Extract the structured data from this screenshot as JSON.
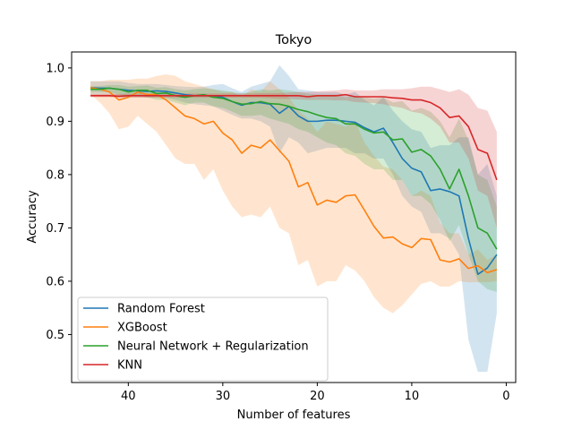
{
  "chart_data": {
    "type": "line",
    "title": "Tokyo",
    "xlabel": "Number of features",
    "ylabel": "Accuracy",
    "xlim": [
      46,
      -1
    ],
    "ylim": [
      0.41,
      1.03
    ],
    "xticks": [
      40,
      30,
      20,
      10,
      0
    ],
    "yticks": [
      0.5,
      0.6,
      0.7,
      0.8,
      0.9,
      1.0
    ],
    "xtick_labels": [
      "40",
      "30",
      "20",
      "10",
      "0"
    ],
    "ytick_labels": [
      "0.5",
      "0.6",
      "0.7",
      "0.8",
      "0.9",
      "1.0"
    ],
    "grid": false,
    "legend_position": "lower-left",
    "x": [
      44,
      43,
      42,
      41,
      40,
      39,
      38,
      37,
      36,
      35,
      34,
      33,
      32,
      31,
      30,
      29,
      28,
      27,
      26,
      25,
      24,
      23,
      22,
      21,
      20,
      19,
      18,
      17,
      16,
      15,
      14,
      13,
      12,
      11,
      10,
      9,
      8,
      7,
      6,
      5,
      4,
      3,
      2,
      1
    ],
    "series": [
      {
        "name": "Random Forest",
        "color": "#1f77b4",
        "band_color": "#1f77b4",
        "values": [
          0.963,
          0.962,
          0.962,
          0.96,
          0.958,
          0.957,
          0.956,
          0.957,
          0.956,
          0.953,
          0.95,
          0.948,
          0.948,
          0.948,
          0.945,
          0.937,
          0.93,
          0.935,
          0.935,
          0.932,
          0.915,
          0.928,
          0.91,
          0.9,
          0.9,
          0.902,
          0.902,
          0.9,
          0.898,
          0.888,
          0.88,
          0.887,
          0.86,
          0.83,
          0.812,
          0.805,
          0.77,
          0.773,
          0.768,
          0.76,
          0.68,
          0.613,
          0.625,
          0.65
        ],
        "lower": [
          0.95,
          0.95,
          0.95,
          0.945,
          0.945,
          0.945,
          0.944,
          0.945,
          0.944,
          0.94,
          0.935,
          0.932,
          0.93,
          0.928,
          0.92,
          0.912,
          0.905,
          0.905,
          0.9,
          0.89,
          0.84,
          0.87,
          0.86,
          0.84,
          0.845,
          0.85,
          0.85,
          0.85,
          0.84,
          0.84,
          0.83,
          0.83,
          0.8,
          0.76,
          0.74,
          0.73,
          0.69,
          0.69,
          0.68,
          0.65,
          0.49,
          0.43,
          0.43,
          0.54
        ],
        "upper": [
          0.975,
          0.975,
          0.975,
          0.975,
          0.972,
          0.97,
          0.97,
          0.97,
          0.968,
          0.966,
          0.965,
          0.964,
          0.965,
          0.968,
          0.97,
          0.962,
          0.955,
          0.965,
          0.97,
          0.975,
          1.005,
          0.985,
          0.96,
          0.958,
          0.955,
          0.955,
          0.955,
          0.95,
          0.955,
          0.94,
          0.93,
          0.945,
          0.92,
          0.9,
          0.885,
          0.88,
          0.85,
          0.855,
          0.855,
          0.87,
          0.87,
          0.8,
          0.82,
          0.76
        ]
      },
      {
        "name": "XGBoost",
        "color": "#ff7f0e",
        "band_color": "#ff7f0e",
        "values": [
          0.963,
          0.96,
          0.955,
          0.94,
          0.945,
          0.955,
          0.95,
          0.95,
          0.94,
          0.925,
          0.91,
          0.905,
          0.895,
          0.9,
          0.878,
          0.865,
          0.84,
          0.855,
          0.85,
          0.865,
          0.845,
          0.825,
          0.777,
          0.785,
          0.743,
          0.752,
          0.748,
          0.76,
          0.762,
          0.733,
          0.703,
          0.681,
          0.683,
          0.67,
          0.663,
          0.68,
          0.678,
          0.64,
          0.636,
          0.642,
          0.624,
          0.629,
          0.616,
          0.622
        ],
        "lower": [
          0.95,
          0.935,
          0.915,
          0.885,
          0.89,
          0.91,
          0.895,
          0.88,
          0.855,
          0.83,
          0.82,
          0.82,
          0.79,
          0.81,
          0.77,
          0.74,
          0.72,
          0.725,
          0.72,
          0.74,
          0.7,
          0.69,
          0.63,
          0.64,
          0.59,
          0.6,
          0.6,
          0.63,
          0.62,
          0.6,
          0.57,
          0.55,
          0.54,
          0.555,
          0.575,
          0.595,
          0.6,
          0.59,
          0.59,
          0.6,
          0.598,
          0.598,
          0.598,
          0.6
        ],
        "upper": [
          0.975,
          0.975,
          0.978,
          0.978,
          0.978,
          0.98,
          0.98,
          0.985,
          0.988,
          0.985,
          0.975,
          0.97,
          0.965,
          0.96,
          0.955,
          0.955,
          0.945,
          0.96,
          0.955,
          0.975,
          0.96,
          0.945,
          0.92,
          0.905,
          0.88,
          0.9,
          0.895,
          0.89,
          0.9,
          0.86,
          0.835,
          0.815,
          0.81,
          0.79,
          0.76,
          0.77,
          0.76,
          0.71,
          0.69,
          0.69,
          0.65,
          0.66,
          0.64,
          0.65
        ]
      },
      {
        "name": "Neural Network + Regularization",
        "color": "#2ca02c",
        "band_color": "#2ca02c",
        "values": [
          0.96,
          0.96,
          0.962,
          0.96,
          0.955,
          0.958,
          0.958,
          0.952,
          0.953,
          0.948,
          0.945,
          0.948,
          0.95,
          0.945,
          0.943,
          0.937,
          0.932,
          0.933,
          0.937,
          0.933,
          0.932,
          0.928,
          0.922,
          0.918,
          0.912,
          0.907,
          0.905,
          0.895,
          0.895,
          0.885,
          0.878,
          0.88,
          0.865,
          0.867,
          0.842,
          0.847,
          0.835,
          0.81,
          0.773,
          0.81,
          0.76,
          0.7,
          0.69,
          0.66
        ],
        "lower": [
          0.955,
          0.955,
          0.955,
          0.95,
          0.945,
          0.948,
          0.945,
          0.94,
          0.94,
          0.935,
          0.93,
          0.935,
          0.935,
          0.928,
          0.925,
          0.918,
          0.91,
          0.91,
          0.912,
          0.905,
          0.9,
          0.895,
          0.885,
          0.88,
          0.87,
          0.86,
          0.855,
          0.84,
          0.835,
          0.82,
          0.81,
          0.81,
          0.79,
          0.79,
          0.76,
          0.76,
          0.745,
          0.715,
          0.675,
          0.705,
          0.65,
          0.6,
          0.585,
          0.58
        ],
        "upper": [
          0.966,
          0.966,
          0.968,
          0.968,
          0.965,
          0.966,
          0.967,
          0.963,
          0.964,
          0.96,
          0.958,
          0.96,
          0.962,
          0.96,
          0.958,
          0.955,
          0.952,
          0.955,
          0.96,
          0.958,
          0.96,
          0.958,
          0.955,
          0.952,
          0.95,
          0.95,
          0.95,
          0.945,
          0.948,
          0.945,
          0.942,
          0.945,
          0.935,
          0.938,
          0.92,
          0.925,
          0.918,
          0.9,
          0.87,
          0.905,
          0.865,
          0.8,
          0.79,
          0.74
        ]
      },
      {
        "name": "KNN",
        "color": "#d62728",
        "band_color": "#d62728",
        "values": [
          0.948,
          0.948,
          0.948,
          0.947,
          0.948,
          0.948,
          0.948,
          0.948,
          0.948,
          0.948,
          0.948,
          0.948,
          0.948,
          0.948,
          0.948,
          0.948,
          0.948,
          0.948,
          0.948,
          0.948,
          0.948,
          0.948,
          0.948,
          0.946,
          0.948,
          0.948,
          0.948,
          0.95,
          0.946,
          0.946,
          0.946,
          0.946,
          0.944,
          0.943,
          0.94,
          0.94,
          0.935,
          0.925,
          0.907,
          0.91,
          0.89,
          0.847,
          0.84,
          0.79
        ],
        "lower": [
          0.945,
          0.945,
          0.945,
          0.944,
          0.944,
          0.944,
          0.944,
          0.944,
          0.944,
          0.944,
          0.944,
          0.944,
          0.944,
          0.944,
          0.944,
          0.944,
          0.944,
          0.944,
          0.944,
          0.943,
          0.942,
          0.942,
          0.941,
          0.94,
          0.94,
          0.94,
          0.939,
          0.939,
          0.936,
          0.935,
          0.934,
          0.932,
          0.928,
          0.925,
          0.918,
          0.915,
          0.905,
          0.89,
          0.86,
          0.86,
          0.83,
          0.77,
          0.76,
          0.7
        ],
        "upper": [
          0.951,
          0.951,
          0.951,
          0.951,
          0.952,
          0.952,
          0.952,
          0.952,
          0.952,
          0.952,
          0.952,
          0.952,
          0.952,
          0.952,
          0.952,
          0.952,
          0.952,
          0.952,
          0.953,
          0.953,
          0.953,
          0.954,
          0.955,
          0.955,
          0.956,
          0.957,
          0.958,
          0.96,
          0.958,
          0.958,
          0.958,
          0.96,
          0.96,
          0.96,
          0.962,
          0.965,
          0.965,
          0.96,
          0.955,
          0.96,
          0.95,
          0.925,
          0.92,
          0.88
        ]
      }
    ]
  }
}
